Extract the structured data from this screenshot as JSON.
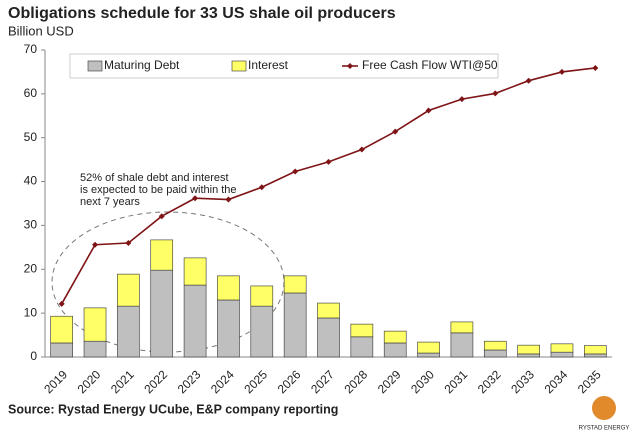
{
  "chart_data": {
    "type": "stacked-bar-line",
    "title": "Obligations schedule for 33 US shale oil producers",
    "subtitle": "Billion USD",
    "categories": [
      "2019",
      "2020",
      "2021",
      "2022",
      "2023",
      "2024",
      "2025",
      "2026",
      "2027",
      "2028",
      "2029",
      "2030",
      "2031",
      "2032",
      "2033",
      "2034",
      "2035"
    ],
    "series": [
      {
        "name": "Maturing Debt",
        "color": "#bfbfbf",
        "kind": "bar",
        "values": [
          3.2,
          3.6,
          11.6,
          19.8,
          16.4,
          13.0,
          11.6,
          14.6,
          8.9,
          4.6,
          3.2,
          0.9,
          5.5,
          1.6,
          0.7,
          1.1,
          0.7
        ]
      },
      {
        "name": "Interest",
        "color": "#ffff66",
        "kind": "bar",
        "values": [
          6.1,
          7.6,
          7.3,
          6.9,
          6.2,
          5.5,
          4.6,
          3.9,
          3.4,
          2.9,
          2.7,
          2.5,
          2.5,
          2.0,
          2.0,
          1.9,
          1.9
        ]
      },
      {
        "name": "Free Cash Flow WTI@50",
        "color": "#7f1416",
        "kind": "line",
        "values": [
          12.1,
          25.6,
          26.0,
          32.1,
          36.2,
          35.9,
          38.7,
          42.3,
          44.5,
          47.3,
          51.4,
          56.2,
          58.8,
          60.1,
          63.0,
          65.0,
          65.9
        ]
      }
    ],
    "ylim": [
      0,
      70
    ],
    "yticks": [
      0,
      10,
      20,
      30,
      40,
      50,
      60,
      70
    ],
    "grid": false,
    "annotation": [
      "52% of shale debt and interest",
      "is expected to be paid within the",
      "next 7 years"
    ],
    "source": "Source: Rystad Energy UCube, E&P company reporting",
    "logo_text": "RYSTAD ENERGY"
  }
}
